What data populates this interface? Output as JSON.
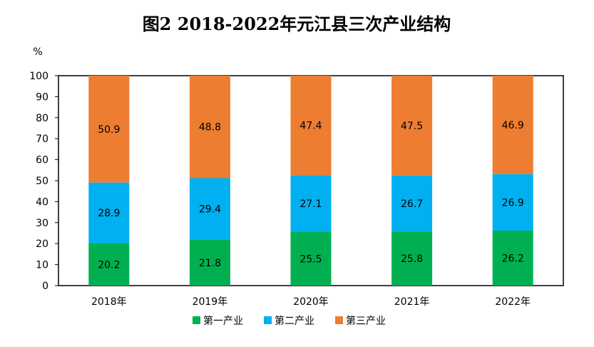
{
  "chart_data": {
    "type": "bar",
    "stacked": true,
    "title": "图2   2018-2022年元江县三次产业结构",
    "unit_label": "%",
    "categories": [
      "2018年",
      "2019年",
      "2020年",
      "2021年",
      "2022年"
    ],
    "series": [
      {
        "name": "第一产业",
        "color": "#00b050",
        "values": [
          20.2,
          21.8,
          25.5,
          25.8,
          26.2
        ]
      },
      {
        "name": "第二产业",
        "color": "#00b0f0",
        "values": [
          28.9,
          29.4,
          27.1,
          26.7,
          26.9
        ]
      },
      {
        "name": "第三产业",
        "color": "#ed7d31",
        "values": [
          50.9,
          48.8,
          47.4,
          47.5,
          46.9
        ]
      }
    ],
    "ylim": [
      0,
      100
    ],
    "yticks": [
      0,
      10,
      20,
      30,
      40,
      50,
      60,
      70,
      80,
      90,
      100
    ],
    "grid": false,
    "legend_position": "bottom"
  }
}
